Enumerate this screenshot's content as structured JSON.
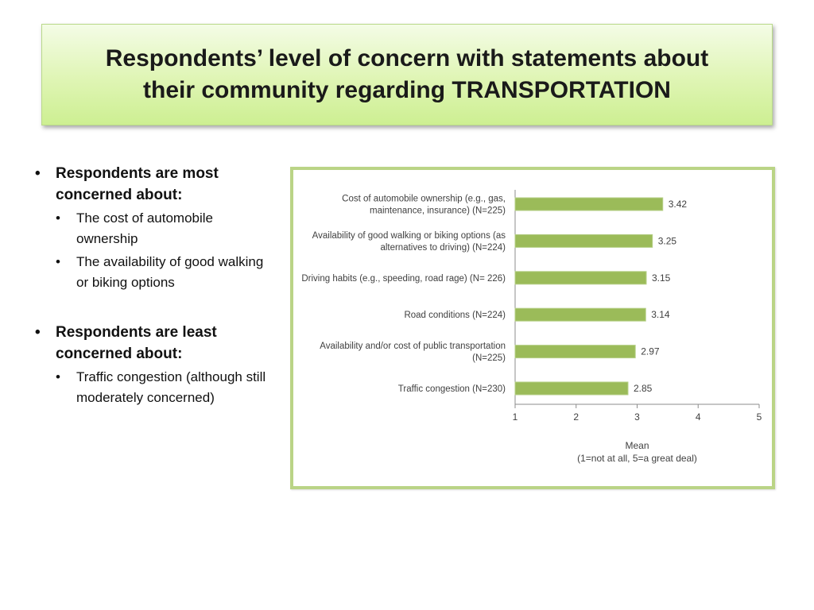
{
  "title": "Respondents’ level of concern with statements about\ntheir community regarding TRANSPORTATION",
  "bullets": {
    "most_heading": "Respondents are most concerned about:",
    "most_items": [
      "The cost of automobile ownership",
      "The availability of good walking or biking options"
    ],
    "least_heading": "Respondents are least concerned about:",
    "least_items": [
      "Traffic congestion (although still moderately concerned)"
    ]
  },
  "chart_data": {
    "type": "bar",
    "orientation": "horizontal",
    "categories": [
      [
        "Cost of automobile ownership (e.g., gas,",
        "maintenance, insurance) (N=225)"
      ],
      [
        "Availability of good walking or biking options (as",
        "alternatives to driving) (N=224)"
      ],
      [
        "Driving habits (e.g., speeding, road rage) (N= 226)"
      ],
      [
        "Road conditions (N=224)"
      ],
      [
        "Availability and/or cost of public transportation",
        "(N=225)"
      ],
      [
        "Traffic congestion (N=230)"
      ]
    ],
    "values": [
      3.42,
      3.25,
      3.15,
      3.14,
      2.97,
      2.85
    ],
    "value_labels": [
      "3.42",
      "3.25",
      "3.15",
      "3.14",
      "2.97",
      "2.85"
    ],
    "xlim": [
      1,
      5
    ],
    "xticks": [
      "1",
      "2",
      "3",
      "4",
      "5"
    ],
    "xlabel": [
      "Mean",
      "(1=not at all, 5=a great deal)"
    ],
    "bar_color": "#9bbb59",
    "grid": false
  }
}
